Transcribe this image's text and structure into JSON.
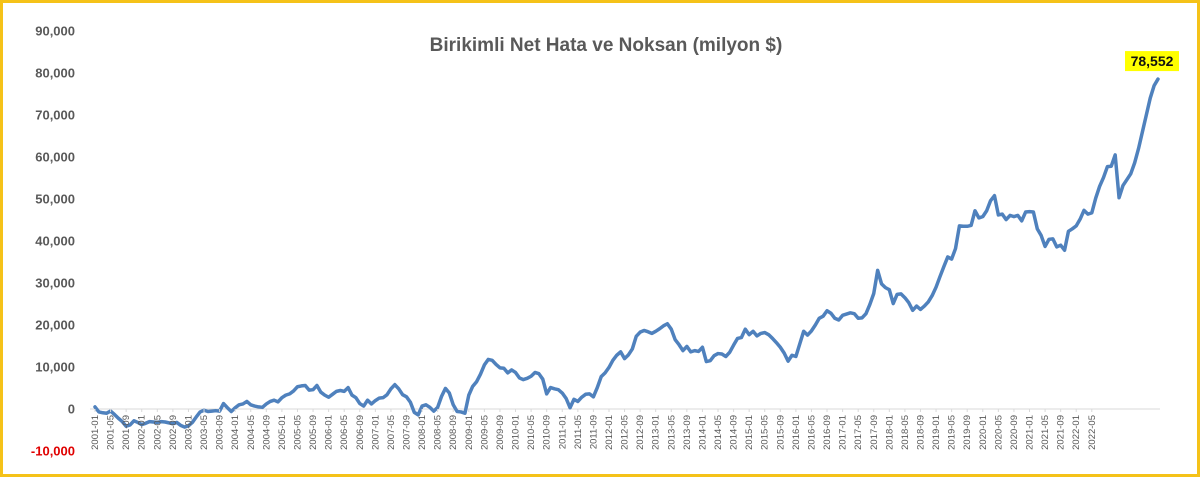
{
  "chart_data": {
    "type": "line",
    "title": "Birikimli Net Hata ve Noksan (milyon $)",
    "xlabel": "",
    "ylabel": "",
    "ylim": [
      -10000,
      90000
    ],
    "yticks": [
      90000,
      80000,
      70000,
      60000,
      50000,
      40000,
      30000,
      20000,
      10000,
      0,
      -10000
    ],
    "ytick_labels": [
      "90,000",
      "80,000",
      "70,000",
      "60,000",
      "50,000",
      "40,000",
      "30,000",
      "20,000",
      "10,000",
      "0",
      "-10,000"
    ],
    "grid": false,
    "legend": "none",
    "series_color": "#4f81bd",
    "negative_tick_color": "#e00000",
    "callout": {
      "label": "78,552",
      "value": 78552,
      "background": "#ffff00"
    },
    "x_tick_labels": [
      "2001-01",
      "2001-05",
      "2001-09",
      "2002-01",
      "2002-05",
      "2002-09",
      "2003-01",
      "2003-05",
      "2003-09",
      "2004-01",
      "2004-05",
      "2004-09",
      "2005-01",
      "2005-05",
      "2005-09",
      "2006-01",
      "2006-05",
      "2006-09",
      "2007-01",
      "2007-05",
      "2007-09",
      "2008-01",
      "2008-05",
      "2008-09",
      "2009-01",
      "2009-05",
      "2009-09",
      "2010-01",
      "2010-05",
      "2010-09",
      "2011-01",
      "2011-05",
      "2011-09",
      "2012-01",
      "2012-05",
      "2012-09",
      "2013-01",
      "2013-05",
      "2013-09",
      "2014-01",
      "2014-05",
      "2014-09",
      "2015-01",
      "2015-05",
      "2015-09",
      "2016-01",
      "2016-05",
      "2016-09",
      "2017-01",
      "2017-05",
      "2017-09",
      "2018-01",
      "2018-05",
      "2018-09",
      "2019-01",
      "2019-05",
      "2019-09",
      "2020-01",
      "2020-05",
      "2020-09",
      "2021-01",
      "2021-05",
      "2021-09",
      "2022-01",
      "2022-05"
    ],
    "series": [
      {
        "start": "2001-01",
        "frequency": "monthly",
        "values": [
          500,
          -700,
          -900,
          -1000,
          -500,
          -1300,
          -2200,
          -3000,
          -4100,
          -3800,
          -2800,
          -3200,
          -3700,
          -3400,
          -3000,
          -3100,
          -3200,
          -3000,
          -3100,
          -3300,
          -3500,
          -3200,
          -3900,
          -4300,
          -4000,
          -3200,
          -1900,
          -700,
          -300,
          -600,
          -500,
          -400,
          -500,
          1300,
          300,
          -600,
          300,
          1000,
          1200,
          1800,
          1000,
          700,
          500,
          400,
          1200,
          1800,
          2100,
          1700,
          2700,
          3300,
          3600,
          4300,
          5300,
          5500,
          5600,
          4500,
          4600,
          5600,
          4000,
          3300,
          2800,
          3500,
          4200,
          4400,
          4200,
          5100,
          3300,
          2700,
          1300,
          700,
          2100,
          1200,
          2000,
          2600,
          2700,
          3400,
          4800,
          5800,
          4800,
          3400,
          2900,
          1600,
          -800,
          -1400,
          700,
          1000,
          400,
          -500,
          400,
          3000,
          4900,
          3800,
          1000,
          -600,
          -700,
          -1000,
          3300,
          5400,
          6500,
          8300,
          10500,
          11800,
          11600,
          10600,
          9800,
          9700,
          8600,
          9300,
          8700,
          7400,
          7000,
          7300,
          7800,
          8700,
          8400,
          7100,
          3600,
          5100,
          4800,
          4600,
          3800,
          2500,
          300,
          2300,
          1800,
          2800,
          3500,
          3600,
          2900,
          5100,
          7700,
          8600,
          9900,
          11600,
          12800,
          13600,
          12000,
          12900,
          14300,
          17300,
          18300,
          18700,
          18400,
          18000,
          18500,
          19100,
          19800,
          20300,
          19000,
          16500,
          15300,
          13900,
          14900,
          13600,
          13900,
          13700,
          14700,
          11300,
          11500,
          12700,
          13200,
          13100,
          12500,
          13500,
          15200,
          16800,
          17000,
          19000,
          17700,
          18500,
          17400,
          18000,
          18200,
          17700,
          16800,
          15800,
          14700,
          13300,
          11400,
          12800,
          12500,
          15500,
          18500,
          17600,
          18600,
          20000,
          21600,
          22100,
          23400,
          22800,
          21600,
          21200,
          22300,
          22600,
          22900,
          22700,
          21600,
          21700,
          22700,
          24900,
          27500,
          33000,
          29800,
          28900,
          28400,
          25100,
          27300,
          27400,
          26500,
          25300,
          23500,
          24500,
          23700,
          24500,
          25500,
          27000,
          29000,
          31500,
          33900,
          36200,
          35700,
          38200,
          43600,
          43500,
          43500,
          43700,
          47200,
          45500,
          45800,
          47200,
          49600,
          50800,
          46200,
          46400,
          45100,
          46100,
          45800,
          46100,
          44800,
          46900,
          47000,
          46900,
          42900,
          41300,
          38700,
          40400,
          40500,
          38600,
          39000,
          37800,
          42300,
          42900,
          43600,
          45200,
          47300,
          46400,
          46700,
          50200,
          53000,
          55100,
          57700,
          57800,
          60500,
          50300,
          53200,
          54600,
          56000,
          58600,
          62000,
          66000,
          70000,
          74000,
          77000,
          78552
        ]
      }
    ]
  }
}
